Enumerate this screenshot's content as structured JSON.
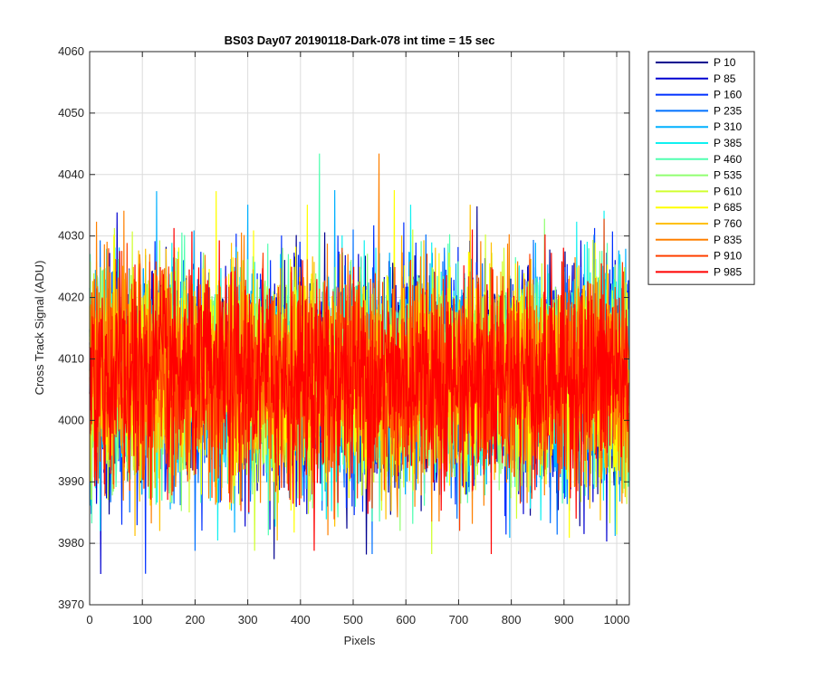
{
  "chart_data": {
    "type": "line",
    "title": "BS03 Day07 20190118-Dark-078 int time = 15 sec",
    "xlabel": "Pixels",
    "ylabel": "Cross Track Signal (ADU)",
    "xlim": [
      0,
      1024
    ],
    "ylim": [
      3970,
      4060
    ],
    "xticks": [
      0,
      100,
      200,
      300,
      400,
      500,
      600,
      700,
      800,
      900,
      1000
    ],
    "yticks": [
      3970,
      3980,
      3990,
      4000,
      4010,
      4020,
      4030,
      4040,
      4050,
      4060
    ],
    "grid": true,
    "legend_position": "outside-top-right",
    "points_per_series": 1024,
    "series_mean": 4007,
    "series_noise_range": [
      3975,
      4051
    ],
    "series": [
      {
        "name": "P 10",
        "color": "#00008f"
      },
      {
        "name": "P 85",
        "color": "#0000d0"
      },
      {
        "name": "P 160",
        "color": "#0030ff"
      },
      {
        "name": "P 235",
        "color": "#0070ff"
      },
      {
        "name": "P 310",
        "color": "#00b0ff"
      },
      {
        "name": "P 385",
        "color": "#10f0f0"
      },
      {
        "name": "P 460",
        "color": "#50ffb0"
      },
      {
        "name": "P 535",
        "color": "#90ff70"
      },
      {
        "name": "P 610",
        "color": "#d0ff30"
      },
      {
        "name": "P 685",
        "color": "#ffff00"
      },
      {
        "name": "P 760",
        "color": "#ffc000"
      },
      {
        "name": "P 835",
        "color": "#ff8000"
      },
      {
        "name": "P 910",
        "color": "#ff4000"
      },
      {
        "name": "P 985",
        "color": "#ff0000"
      }
    ]
  }
}
